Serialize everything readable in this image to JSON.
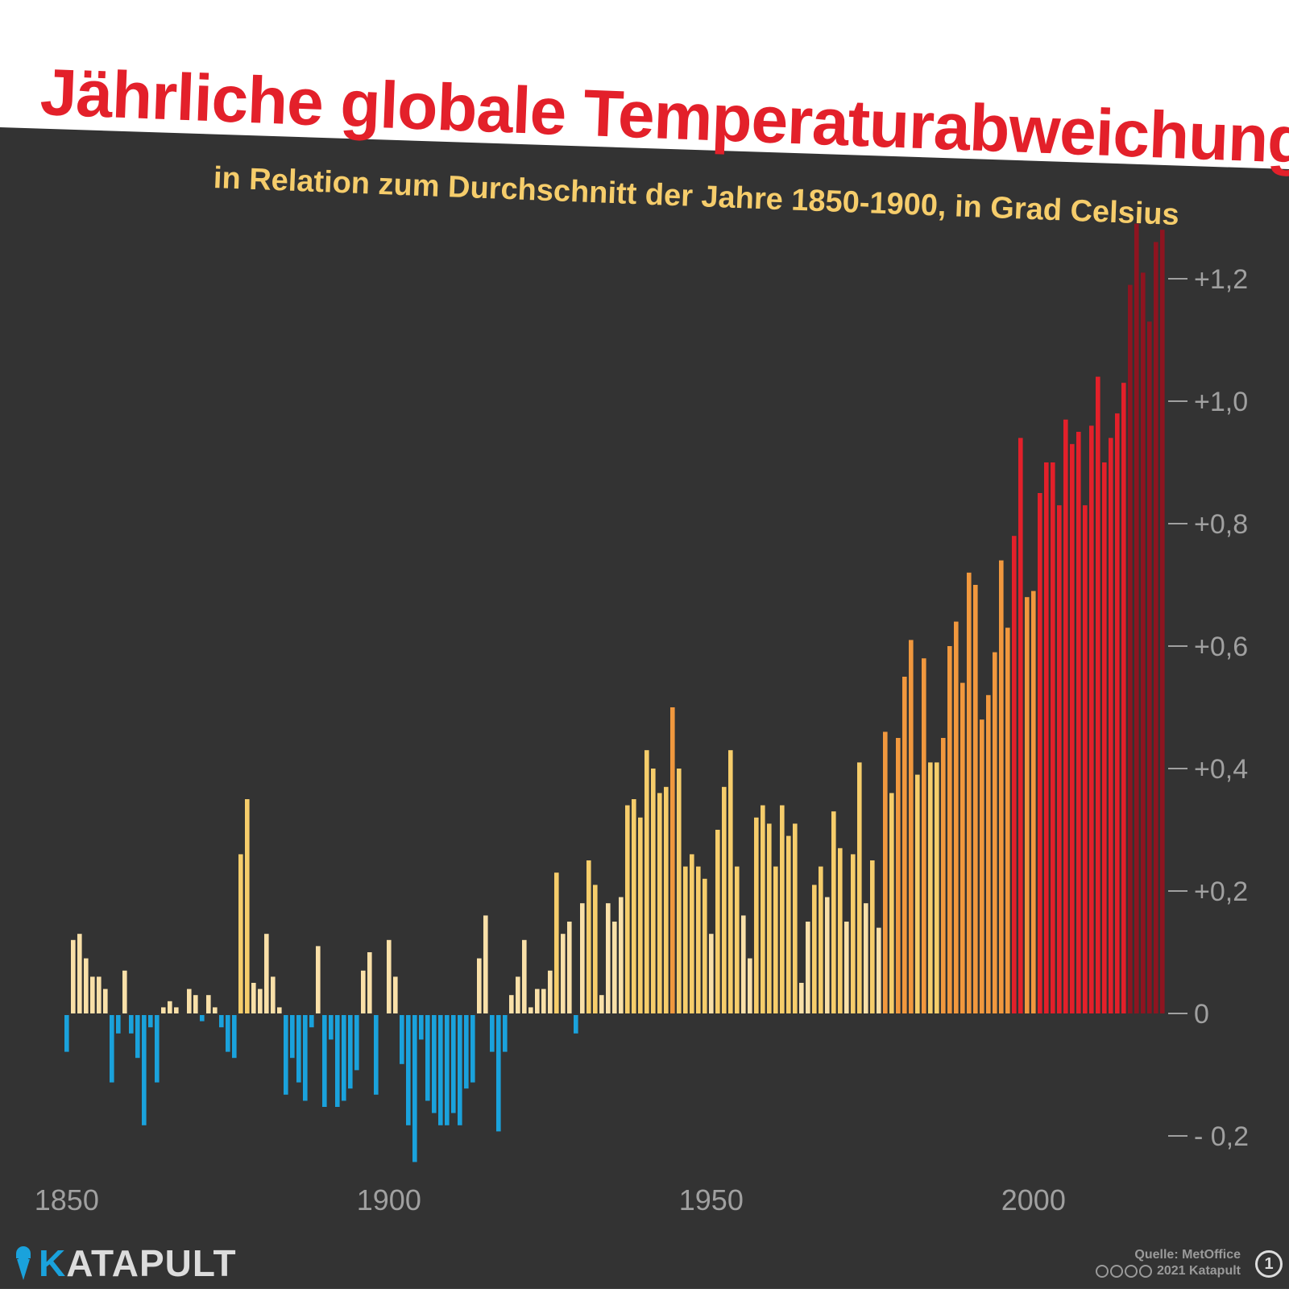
{
  "title": "Jährliche globale Temperaturabweichung",
  "subtitle": "in Relation zum Durchschnitt der Jahre 1850-1900, in Grad Celsius",
  "brand": {
    "name_first": "K",
    "name_rest": "ATAPULT"
  },
  "credits": {
    "source": "Quelle: MetOffice",
    "copyright": "2021 Katapult",
    "edition": "1"
  },
  "colors": {
    "background": "#333333",
    "title": "#e3202a",
    "subtitle": "#f6cd6b",
    "negative": "#1aa2dc",
    "axis": "#a0a0a0",
    "bins": [
      "#f9e0a8",
      "#f6cd6b",
      "#f1983e",
      "#e3202a",
      "#8e1420"
    ]
  },
  "chart_data": {
    "type": "bar",
    "title": "Jährliche globale Temperaturabweichung",
    "subtitle": "in Relation zum Durchschnitt der Jahre 1850-1900, in Grad Celsius",
    "xlabel": "",
    "ylabel": "",
    "ylim": [
      -0.26,
      1.3
    ],
    "grid": false,
    "x_ticks": [
      1850,
      1900,
      1950,
      2000
    ],
    "x_tick_labels": [
      "1850",
      "1900",
      "1950",
      "2000"
    ],
    "y_ticks": [
      -0.2,
      0,
      0.2,
      0.4,
      0.6,
      0.8,
      1.0,
      1.2
    ],
    "y_tick_labels": [
      "- 0,2",
      "0",
      "+0,2",
      "+0,4",
      "+0,6",
      "+0,8",
      "+1,0",
      "+1,2"
    ],
    "x": [
      1850,
      1851,
      1852,
      1853,
      1854,
      1855,
      1856,
      1857,
      1858,
      1859,
      1860,
      1861,
      1862,
      1863,
      1864,
      1865,
      1866,
      1867,
      1868,
      1869,
      1870,
      1871,
      1872,
      1873,
      1874,
      1875,
      1876,
      1877,
      1878,
      1879,
      1880,
      1881,
      1882,
      1883,
      1884,
      1885,
      1886,
      1887,
      1888,
      1889,
      1890,
      1891,
      1892,
      1893,
      1894,
      1895,
      1896,
      1897,
      1898,
      1899,
      1900,
      1901,
      1902,
      1903,
      1904,
      1905,
      1906,
      1907,
      1908,
      1909,
      1910,
      1911,
      1912,
      1913,
      1914,
      1915,
      1916,
      1917,
      1918,
      1919,
      1920,
      1921,
      1922,
      1923,
      1924,
      1925,
      1926,
      1927,
      1928,
      1929,
      1930,
      1931,
      1932,
      1933,
      1934,
      1935,
      1936,
      1937,
      1938,
      1939,
      1940,
      1941,
      1942,
      1943,
      1944,
      1945,
      1946,
      1947,
      1948,
      1949,
      1950,
      1951,
      1952,
      1953,
      1954,
      1955,
      1956,
      1957,
      1958,
      1959,
      1960,
      1961,
      1962,
      1963,
      1964,
      1965,
      1966,
      1967,
      1968,
      1969,
      1970,
      1971,
      1972,
      1973,
      1974,
      1975,
      1976,
      1977,
      1978,
      1979,
      1980,
      1981,
      1982,
      1983,
      1984,
      1985,
      1986,
      1987,
      1988,
      1989,
      1990,
      1991,
      1992,
      1993,
      1994,
      1995,
      1996,
      1997,
      1998,
      1999,
      2000,
      2001,
      2002,
      2003,
      2004,
      2005,
      2006,
      2007,
      2008,
      2009,
      2010,
      2011,
      2012,
      2013,
      2014,
      2015,
      2016,
      2017,
      2018,
      2019,
      2020
    ],
    "values": [
      -0.06,
      0.12,
      0.13,
      0.09,
      0.06,
      0.06,
      0.04,
      -0.11,
      -0.03,
      0.07,
      -0.03,
      -0.07,
      -0.18,
      -0.02,
      -0.11,
      0.01,
      0.02,
      0.01,
      0.0,
      0.04,
      0.03,
      -0.01,
      0.03,
      0.01,
      -0.02,
      -0.06,
      -0.07,
      0.26,
      0.35,
      0.05,
      0.04,
      0.13,
      0.06,
      0.01,
      -0.13,
      -0.07,
      -0.11,
      -0.14,
      -0.02,
      0.11,
      -0.15,
      -0.04,
      -0.15,
      -0.14,
      -0.12,
      -0.09,
      0.07,
      0.1,
      -0.13,
      0.0,
      0.12,
      0.06,
      -0.08,
      -0.18,
      -0.24,
      -0.04,
      -0.14,
      -0.16,
      -0.18,
      -0.18,
      -0.16,
      -0.18,
      -0.12,
      -0.11,
      0.09,
      0.16,
      -0.06,
      -0.19,
      -0.06,
      0.03,
      0.06,
      0.12,
      0.01,
      0.04,
      0.04,
      0.07,
      0.23,
      0.13,
      0.15,
      -0.03,
      0.18,
      0.25,
      0.21,
      0.03,
      0.18,
      0.15,
      0.19,
      0.34,
      0.35,
      0.32,
      0.43,
      0.4,
      0.36,
      0.37,
      0.5,
      0.4,
      0.24,
      0.26,
      0.24,
      0.22,
      0.13,
      0.3,
      0.37,
      0.43,
      0.24,
      0.16,
      0.09,
      0.32,
      0.34,
      0.31,
      0.24,
      0.34,
      0.29,
      0.31,
      0.05,
      0.15,
      0.21,
      0.24,
      0.19,
      0.33,
      0.27,
      0.15,
      0.26,
      0.41,
      0.18,
      0.25,
      0.14,
      0.46,
      0.36,
      0.45,
      0.55,
      0.61,
      0.39,
      0.58,
      0.41,
      0.41,
      0.45,
      0.6,
      0.64,
      0.54,
      0.72,
      0.7,
      0.48,
      0.52,
      0.59,
      0.74,
      0.63,
      0.78,
      0.94,
      0.68,
      0.69,
      0.85,
      0.9,
      0.9,
      0.83,
      0.97,
      0.93,
      0.95,
      0.83,
      0.96,
      1.04,
      0.9,
      0.94,
      0.98,
      1.03,
      1.19,
      1.29,
      1.21,
      1.13,
      1.26,
      1.28
    ]
  }
}
